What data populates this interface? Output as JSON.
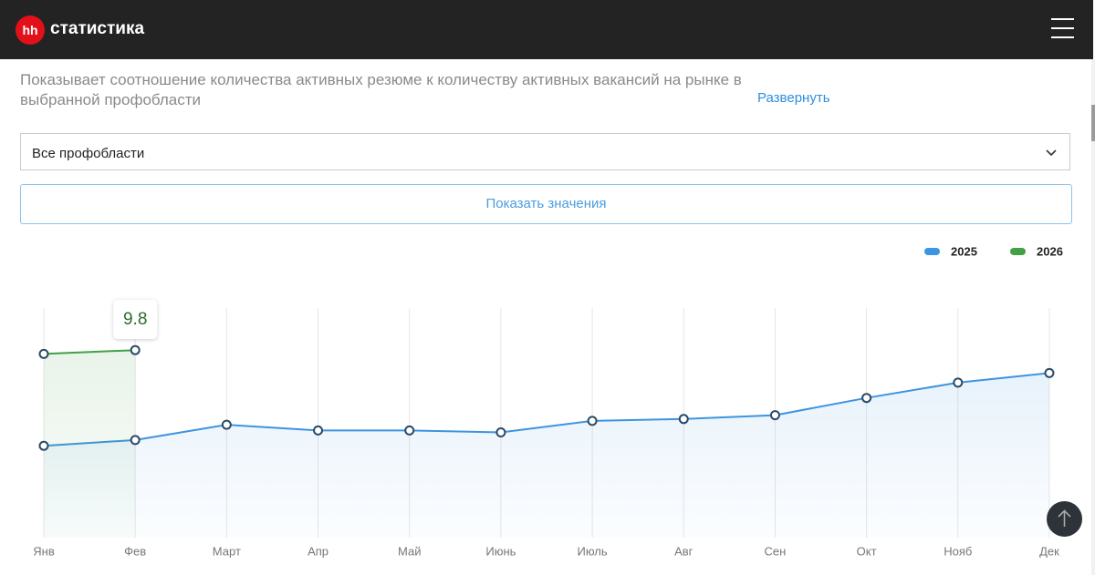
{
  "header": {
    "logo": "hh",
    "title": "статистика"
  },
  "description": "Показывает соотношение количества активных резюме к количеству активных вакансий на рынке в выбранной профобласти",
  "expand_link": "Развернуть",
  "select": "Все профобласти",
  "button": "Показать значения",
  "chart_data": {
    "type": "line",
    "categories": [
      "Янв",
      "Фев",
      "Март",
      "Апр",
      "Май",
      "Июнь",
      "Июль",
      "Авг",
      "Сен",
      "Окт",
      "Нояб",
      "Дек"
    ],
    "series": [
      {
        "name": "2025",
        "color": "#3d94e0",
        "values": [
          4.8,
          5.1,
          5.9,
          5.6,
          5.6,
          5.5,
          6.1,
          6.2,
          6.4,
          7.3,
          8.1,
          8.6
        ]
      },
      {
        "name": "2026",
        "color": "#43a047",
        "values": [
          9.6,
          9.8,
          null,
          null,
          null,
          null,
          null,
          null,
          null,
          null,
          null,
          null
        ]
      }
    ],
    "ylim": [
      0,
      12
    ],
    "grid": true
  }
}
